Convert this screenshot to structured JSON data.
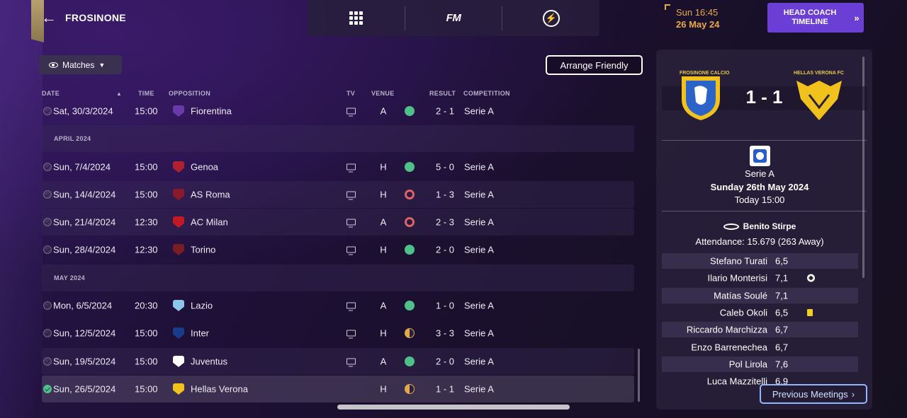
{
  "header": {
    "club_name": "FROSINONE",
    "back_icon": "arrow-left-icon"
  },
  "topnav": {
    "items": [
      "grid-menu-icon",
      "fm-logo",
      "lightning-icon"
    ],
    "fm_label": "FM"
  },
  "clock": {
    "time": "Sun 16:45",
    "date": "26 May 24"
  },
  "head_coach_timeline": {
    "label": "HEAD COACH\nTIMELINE",
    "icon": "double-chevron-right-icon"
  },
  "view_dropdown": {
    "label": "Matches",
    "icon": "eye-icon"
  },
  "arrange_friendly": {
    "label": "Arrange Friendly"
  },
  "columns": {
    "date": "DATE",
    "time": "TIME",
    "opposition": "OPPOSITION",
    "tv": "TV",
    "venue": "VENUE",
    "result": "RESULT",
    "competition": "COMPETITION"
  },
  "fixtures": [
    {
      "date": "Sat, 30/3/2024",
      "time": "15:00",
      "opposition": "Fiorentina",
      "venue": "A",
      "outcome": "win",
      "result": "2 - 1",
      "competition": "Serie A",
      "tv": true
    },
    {
      "month": "APRIL 2024"
    },
    {
      "date": "Sun, 7/4/2024",
      "time": "15:00",
      "opposition": "Genoa",
      "venue": "H",
      "outcome": "win",
      "result": "5 - 0",
      "competition": "Serie A",
      "tv": true
    },
    {
      "date": "Sun, 14/4/2024",
      "time": "15:00",
      "opposition": "AS Roma",
      "venue": "H",
      "outcome": "loss",
      "result": "1 - 3",
      "competition": "Serie A",
      "tv": true
    },
    {
      "date": "Sun, 21/4/2024",
      "time": "12:30",
      "opposition": "AC Milan",
      "venue": "A",
      "outcome": "loss",
      "result": "2 - 3",
      "competition": "Serie A",
      "tv": true
    },
    {
      "date": "Sun, 28/4/2024",
      "time": "12:30",
      "opposition": "Torino",
      "venue": "H",
      "outcome": "win",
      "result": "2 - 0",
      "competition": "Serie A",
      "tv": true
    },
    {
      "month": "MAY 2024"
    },
    {
      "date": "Mon, 6/5/2024",
      "time": "20:30",
      "opposition": "Lazio",
      "venue": "A",
      "outcome": "win",
      "result": "1 - 0",
      "competition": "Serie A",
      "tv": true
    },
    {
      "date": "Sun, 12/5/2024",
      "time": "15:00",
      "opposition": "Inter",
      "venue": "H",
      "outcome": "draw",
      "result": "3 - 3",
      "competition": "Serie A",
      "tv": true
    },
    {
      "date": "Sun, 19/5/2024",
      "time": "15:00",
      "opposition": "Juventus",
      "venue": "A",
      "outcome": "win",
      "result": "2 - 0",
      "competition": "Serie A",
      "tv": true
    },
    {
      "date": "Sun, 26/5/2024",
      "time": "15:00",
      "opposition": "Hellas Verona",
      "venue": "H",
      "outcome": "draw",
      "result": "1 - 1",
      "competition": "Serie A",
      "tv": false
    }
  ],
  "badge_colors": {
    "Fiorentina": "#6a3aa8",
    "Genoa": "#b02030",
    "AS Roma": "#8a1a2a",
    "AC Milan": "#c21a24",
    "Torino": "#7a1c24",
    "Lazio": "#8ec6ea",
    "Inter": "#1a3a8a",
    "Juventus": "#ffffff",
    "Hellas Verona": "#f2c21c"
  },
  "match_panel": {
    "home_crest_label": "FROSINONE CALCIO",
    "away_crest_label": "HELLAS VERONA FC",
    "score": "1 - 1",
    "competition": "Serie A",
    "date_long": "Sunday 26th May 2024",
    "when": "Today 15:00",
    "stadium": "Benito Stirpe",
    "attendance": "Attendance: 15.679 (263 Away)",
    "players": [
      {
        "name": "Stefano Turati",
        "rating": "6,5",
        "event": ""
      },
      {
        "name": "Ilario Monterisi",
        "rating": "7,1",
        "event": "goal"
      },
      {
        "name": "Matías Soulé",
        "rating": "7,1",
        "event": ""
      },
      {
        "name": "Caleb Okoli",
        "rating": "6,5",
        "event": "yellow"
      },
      {
        "name": "Riccardo Marchizza",
        "rating": "6,7",
        "event": ""
      },
      {
        "name": "Enzo Barrenechea",
        "rating": "6,7",
        "event": ""
      },
      {
        "name": "Pol Lirola",
        "rating": "7,6",
        "event": ""
      },
      {
        "name": "Luca Mazzitelli",
        "rating": "6,9",
        "event": ""
      }
    ],
    "previous_meetings": "Previous Meetings"
  },
  "colors": {
    "accent_purple": "#6b3fd6",
    "clock_orange": "#e9a94a",
    "win_green": "#4fc08a",
    "loss_red": "#e06262",
    "draw_amber": "#e0a94a"
  }
}
